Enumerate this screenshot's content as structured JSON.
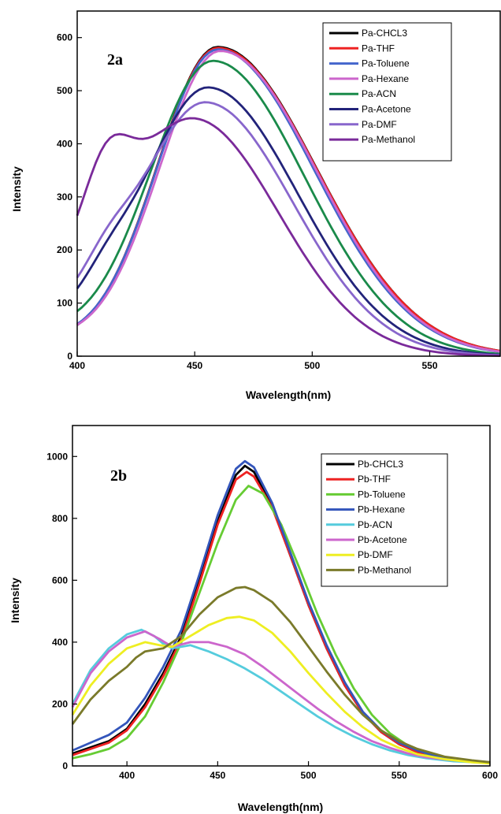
{
  "chart_data": [
    {
      "type": "line",
      "panel_label": "2a",
      "xlabel": "Wavelength(nm)",
      "ylabel": "Intensity",
      "xlim": [
        400,
        580
      ],
      "ylim": [
        0,
        650
      ],
      "xticks": [
        400,
        450,
        500,
        550
      ],
      "yticks": [
        0,
        100,
        200,
        300,
        400,
        500,
        600
      ],
      "legend_position": "top-right",
      "grid": false,
      "series": [
        {
          "name": "Pa-CHCL3",
          "color": "#000000",
          "peak": 580,
          "peak_x": 460,
          "start": 52,
          "sigL": 26,
          "sigR": 42,
          "shoulder": 0
        },
        {
          "name": "Pa-THF",
          "color": "#ee2222",
          "peak": 578,
          "peak_x": 460,
          "start": 56,
          "sigL": 26,
          "sigR": 42,
          "shoulder": 0
        },
        {
          "name": "Pa-Toluene",
          "color": "#4466cc",
          "peak": 575,
          "peak_x": 460,
          "start": 58,
          "sigL": 26,
          "sigR": 41,
          "shoulder": 0
        },
        {
          "name": "Pa-Hexane",
          "color": "#cc66cc",
          "peak": 572,
          "peak_x": 461,
          "start": 64,
          "sigL": 26,
          "sigR": 41,
          "shoulder": 0
        },
        {
          "name": "Pa-ACN",
          "color": "#1a8a4a",
          "peak": 552,
          "peak_x": 458,
          "start": 85,
          "sigL": 27,
          "sigR": 39,
          "shoulder": 0
        },
        {
          "name": "Pa-Acetone",
          "color": "#22237a",
          "peak": 500,
          "peak_x": 456,
          "start": 115,
          "sigL": 28,
          "sigR": 38,
          "shoulder": 40
        },
        {
          "name": "Pa-DMF",
          "color": "#8866cc",
          "peak": 471,
          "peak_x": 455,
          "start": 130,
          "sigL": 29,
          "sigR": 37,
          "shoulder": 50
        },
        {
          "name": "Pa-Methanol",
          "color": "#7a2a9a",
          "peak": 435,
          "peak_x": 450,
          "start": 195,
          "sigL": 32,
          "sigR": 36,
          "shoulder": 140
        }
      ]
    },
    {
      "type": "line",
      "panel_label": "2b",
      "xlabel": "Wavelength(nm)",
      "ylabel": "Intensity",
      "xlim": [
        370,
        600
      ],
      "ylim": [
        0,
        1100
      ],
      "xticks": [
        400,
        450,
        500,
        550,
        600
      ],
      "yticks": [
        0,
        200,
        400,
        600,
        800,
        1000
      ],
      "legend_position": "top-right",
      "grid": false,
      "series": [
        {
          "name": "Pb-CHCL3",
          "color": "#000000",
          "points": [
            [
              370,
              40
            ],
            [
              380,
              60
            ],
            [
              390,
              80
            ],
            [
              400,
              120
            ],
            [
              410,
              200
            ],
            [
              420,
              300
            ],
            [
              430,
              420
            ],
            [
              440,
              600
            ],
            [
              450,
              790
            ],
            [
              460,
              940
            ],
            [
              465,
              970
            ],
            [
              470,
              950
            ],
            [
              480,
              840
            ],
            [
              490,
              680
            ],
            [
              500,
              520
            ],
            [
              510,
              380
            ],
            [
              520,
              260
            ],
            [
              530,
              170
            ],
            [
              540,
              110
            ],
            [
              550,
              70
            ],
            [
              560,
              45
            ],
            [
              570,
              30
            ],
            [
              580,
              20
            ],
            [
              590,
              15
            ],
            [
              600,
              10
            ]
          ]
        },
        {
          "name": "Pb-THF",
          "color": "#ee2222",
          "points": [
            [
              370,
              35
            ],
            [
              380,
              55
            ],
            [
              390,
              75
            ],
            [
              400,
              115
            ],
            [
              410,
              190
            ],
            [
              420,
              290
            ],
            [
              430,
              410
            ],
            [
              440,
              590
            ],
            [
              450,
              780
            ],
            [
              460,
              925
            ],
            [
              466,
              950
            ],
            [
              470,
              935
            ],
            [
              480,
              835
            ],
            [
              490,
              680
            ],
            [
              500,
              520
            ],
            [
              510,
              380
            ],
            [
              520,
              260
            ],
            [
              530,
              170
            ],
            [
              540,
              110
            ],
            [
              550,
              70
            ],
            [
              560,
              45
            ],
            [
              570,
              30
            ],
            [
              580,
              20
            ],
            [
              590,
              15
            ],
            [
              600,
              10
            ]
          ]
        },
        {
          "name": "Pb-Toluene",
          "color": "#66cc33",
          "points": [
            [
              370,
              25
            ],
            [
              380,
              38
            ],
            [
              390,
              55
            ],
            [
              400,
              90
            ],
            [
              410,
              160
            ],
            [
              420,
              270
            ],
            [
              430,
              400
            ],
            [
              440,
              560
            ],
            [
              450,
              720
            ],
            [
              460,
              860
            ],
            [
              467,
              905
            ],
            [
              475,
              880
            ],
            [
              485,
              780
            ],
            [
              495,
              640
            ],
            [
              505,
              490
            ],
            [
              515,
              360
            ],
            [
              525,
              250
            ],
            [
              535,
              165
            ],
            [
              545,
              105
            ],
            [
              555,
              65
            ],
            [
              565,
              40
            ],
            [
              575,
              28
            ],
            [
              590,
              15
            ],
            [
              600,
              10
            ]
          ]
        },
        {
          "name": "Pb-Hexane",
          "color": "#3355bb",
          "points": [
            [
              370,
              50
            ],
            [
              380,
              75
            ],
            [
              390,
              100
            ],
            [
              400,
              140
            ],
            [
              410,
              220
            ],
            [
              420,
              320
            ],
            [
              430,
              440
            ],
            [
              440,
              620
            ],
            [
              450,
              810
            ],
            [
              460,
              960
            ],
            [
              465,
              985
            ],
            [
              470,
              965
            ],
            [
              480,
              850
            ],
            [
              490,
              690
            ],
            [
              500,
              530
            ],
            [
              510,
              390
            ],
            [
              520,
              270
            ],
            [
              530,
              175
            ],
            [
              540,
              115
            ],
            [
              550,
              75
            ],
            [
              560,
              50
            ],
            [
              570,
              33
            ],
            [
              580,
              22
            ],
            [
              590,
              16
            ],
            [
              600,
              12
            ]
          ]
        },
        {
          "name": "Pb-ACN",
          "color": "#55ccdd",
          "points": [
            [
              370,
              200
            ],
            [
              380,
              310
            ],
            [
              390,
              380
            ],
            [
              400,
              425
            ],
            [
              408,
              440
            ],
            [
              415,
              420
            ],
            [
              420,
              395
            ],
            [
              425,
              380
            ],
            [
              435,
              390
            ],
            [
              445,
              370
            ],
            [
              455,
              345
            ],
            [
              465,
              315
            ],
            [
              475,
              280
            ],
            [
              485,
              240
            ],
            [
              495,
              200
            ],
            [
              505,
              160
            ],
            [
              515,
              125
            ],
            [
              525,
              95
            ],
            [
              535,
              70
            ],
            [
              545,
              50
            ],
            [
              555,
              35
            ],
            [
              565,
              25
            ],
            [
              580,
              15
            ],
            [
              600,
              10
            ]
          ]
        },
        {
          "name": "Pb-Acetone",
          "color": "#cc66cc",
          "points": [
            [
              370,
              190
            ],
            [
              380,
              300
            ],
            [
              390,
              370
            ],
            [
              400,
              415
            ],
            [
              410,
              435
            ],
            [
              418,
              410
            ],
            [
              425,
              385
            ],
            [
              435,
              400
            ],
            [
              445,
              400
            ],
            [
              455,
              385
            ],
            [
              465,
              360
            ],
            [
              475,
              320
            ],
            [
              485,
              275
            ],
            [
              495,
              230
            ],
            [
              505,
              185
            ],
            [
              515,
              145
            ],
            [
              525,
              110
            ],
            [
              535,
              80
            ],
            [
              545,
              58
            ],
            [
              555,
              40
            ],
            [
              565,
              28
            ],
            [
              580,
              18
            ],
            [
              600,
              10
            ]
          ]
        },
        {
          "name": "Pb-DMF",
          "color": "#eeee22",
          "points": [
            [
              370,
              165
            ],
            [
              380,
              260
            ],
            [
              390,
              330
            ],
            [
              400,
              380
            ],
            [
              410,
              400
            ],
            [
              418,
              390
            ],
            [
              425,
              385
            ],
            [
              435,
              420
            ],
            [
              445,
              455
            ],
            [
              455,
              478
            ],
            [
              462,
              482
            ],
            [
              470,
              470
            ],
            [
              480,
              430
            ],
            [
              490,
              370
            ],
            [
              500,
              300
            ],
            [
              510,
              235
            ],
            [
              520,
              175
            ],
            [
              530,
              125
            ],
            [
              540,
              85
            ],
            [
              550,
              58
            ],
            [
              560,
              38
            ],
            [
              575,
              22
            ],
            [
              590,
              12
            ],
            [
              600,
              8
            ]
          ]
        },
        {
          "name": "Pb-Methanol",
          "color": "#7a7a2a",
          "points": [
            [
              370,
              135
            ],
            [
              380,
              215
            ],
            [
              390,
              275
            ],
            [
              400,
              320
            ],
            [
              405,
              350
            ],
            [
              410,
              370
            ],
            [
              420,
              380
            ],
            [
              430,
              420
            ],
            [
              440,
              490
            ],
            [
              450,
              545
            ],
            [
              460,
              575
            ],
            [
              465,
              578
            ],
            [
              470,
              568
            ],
            [
              480,
              530
            ],
            [
              490,
              465
            ],
            [
              500,
              385
            ],
            [
              510,
              305
            ],
            [
              520,
              230
            ],
            [
              530,
              165
            ],
            [
              540,
              115
            ],
            [
              550,
              80
            ],
            [
              560,
              55
            ],
            [
              575,
              30
            ],
            [
              590,
              18
            ],
            [
              600,
              12
            ]
          ]
        }
      ]
    }
  ]
}
